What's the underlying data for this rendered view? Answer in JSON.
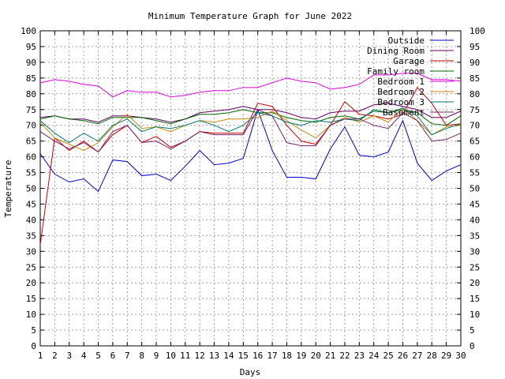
{
  "chart_data": {
    "type": "line",
    "title": "Minimum Temperature Graph for June 2022",
    "xlabel": "Days",
    "ylabel": "Temperature",
    "xlim": [
      1,
      30
    ],
    "ylim": [
      0,
      100
    ],
    "x_ticks": [
      1,
      2,
      3,
      4,
      5,
      6,
      7,
      8,
      9,
      10,
      11,
      12,
      13,
      14,
      15,
      16,
      17,
      18,
      19,
      20,
      21,
      22,
      23,
      24,
      25,
      26,
      27,
      28,
      29,
      30
    ],
    "y_ticks": [
      0,
      5,
      10,
      15,
      20,
      25,
      30,
      35,
      40,
      45,
      50,
      55,
      60,
      65,
      70,
      75,
      80,
      85,
      90,
      95,
      100
    ],
    "grid": true,
    "legend_position": "top-right",
    "x": [
      1,
      2,
      3,
      4,
      5,
      6,
      7,
      8,
      9,
      10,
      11,
      12,
      13,
      14,
      15,
      16,
      17,
      18,
      19,
      20,
      21,
      22,
      23,
      24,
      25,
      26,
      27,
      28,
      29,
      30
    ],
    "series": [
      {
        "name": "Outside",
        "color": "#0000cc",
        "values": [
          61,
          54.5,
          52,
          53,
          49,
          59,
          58.5,
          54,
          54.5,
          52.5,
          57,
          62,
          57.5,
          58,
          59.5,
          75,
          62,
          53.5,
          53.5,
          53,
          62.5,
          69.5,
          60.5,
          60,
          61.5,
          71.5,
          58,
          52.5,
          55.5,
          57.5
        ]
      },
      {
        "name": "Dining Room",
        "color": "#660066",
        "values": [
          72.5,
          73,
          72,
          72,
          71,
          73,
          73,
          72.5,
          72,
          71,
          72,
          74,
          74.5,
          75,
          76,
          75,
          75,
          74,
          72.5,
          72,
          74,
          74.5,
          74.5,
          76.5,
          77,
          76,
          75,
          72.5,
          72.5,
          74.5
        ]
      },
      {
        "name": "Garage",
        "color": "#cc0000",
        "values": [
          32,
          66,
          62,
          65,
          61.5,
          67,
          70,
          64.5,
          66.5,
          63,
          65,
          68,
          67.5,
          67.5,
          67.5,
          77,
          76,
          70,
          65,
          64,
          70,
          77.5,
          73.5,
          73,
          72,
          73.5,
          82,
          77,
          70,
          70.5
        ]
      },
      {
        "name": "Family room",
        "color": "#006600",
        "values": [
          72,
          73,
          72,
          71.5,
          70.5,
          72.5,
          72.5,
          72.5,
          71.5,
          70.5,
          72,
          73.5,
          73.5,
          74,
          75,
          74,
          74,
          72.5,
          71.5,
          71,
          72.5,
          73,
          72,
          74.5,
          74,
          75,
          74,
          70.5,
          70,
          73
        ]
      },
      {
        "name": "Bedroom 1",
        "color": "#dd00dd",
        "values": [
          83.5,
          84.5,
          84,
          83,
          82.5,
          79,
          81,
          80.5,
          80.5,
          79,
          79.5,
          80.5,
          81,
          81,
          82,
          82,
          83.5,
          85,
          84,
          83.5,
          81.5,
          82,
          83,
          86,
          86,
          86.5,
          86.5,
          84.5,
          84.5,
          84
        ]
      },
      {
        "name": "Bedroom 2",
        "color": "#cc8800",
        "values": [
          71,
          66,
          64,
          62,
          64.5,
          69.5,
          73.5,
          69,
          69.5,
          68,
          70,
          71.5,
          71,
          72,
          72,
          72.5,
          74.5,
          71.5,
          68.5,
          66,
          70,
          72.5,
          71,
          73,
          71,
          75.5,
          71.5,
          67,
          69.5,
          70
        ]
      },
      {
        "name": "Bedroom 3",
        "color": "#007777",
        "values": [
          71.5,
          67.5,
          64.5,
          67.5,
          65,
          70,
          72,
          68,
          69.5,
          69,
          70,
          71.5,
          70,
          68,
          70,
          74,
          73,
          71,
          70,
          71.5,
          71,
          72,
          71.5,
          75,
          74,
          75.5,
          73,
          67,
          69,
          70.5
        ]
      },
      {
        "name": "Basement",
        "color": "#772266",
        "values": [
          68,
          65,
          62.5,
          64.5,
          61.5,
          68,
          70,
          64.5,
          65,
          62.5,
          65,
          68,
          67,
          67,
          67,
          75,
          73,
          64.5,
          63.5,
          63.5,
          70,
          72,
          72,
          70,
          69,
          74,
          71.5,
          65,
          65.5,
          67.5
        ]
      }
    ]
  }
}
